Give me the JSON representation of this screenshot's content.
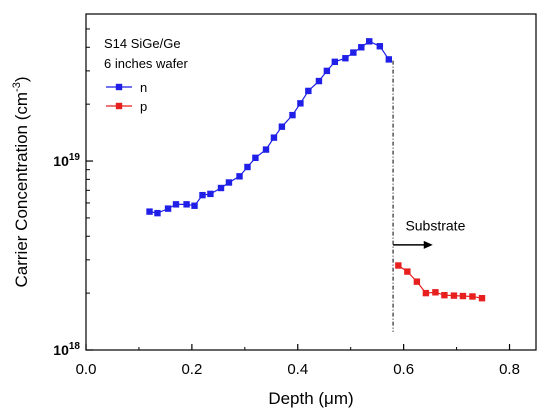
{
  "chart_data": {
    "type": "line",
    "title": "",
    "xlabel": "Depth  (μm)",
    "ylabel": "Carrier Concentration  (cm",
    "ylabel_exp": "-3",
    "ylabel_close": ")",
    "xlim": [
      0.0,
      0.85
    ],
    "ylim": [
      1e+18,
      6e+19
    ],
    "yscale": "log",
    "grid": false,
    "xticks": [
      0.0,
      0.2,
      0.4,
      0.6,
      0.8
    ],
    "xtick_labels": [
      "0.0",
      "0.2",
      "0.4",
      "0.6",
      "0.8"
    ],
    "yticks": [
      {
        "value": 1e+19,
        "base": "10",
        "exp": "19"
      },
      {
        "value": 1e+18,
        "base": "10",
        "exp": "18"
      }
    ],
    "legend": {
      "placement": "top-left",
      "lines": [
        "S14 SiGe/Ge",
        "6 inches wafer"
      ]
    },
    "series": [
      {
        "name": "n",
        "color": "#1f1fe8",
        "marker": "square",
        "x": [
          0.12,
          0.135,
          0.155,
          0.17,
          0.19,
          0.205,
          0.22,
          0.235,
          0.255,
          0.27,
          0.29,
          0.305,
          0.32,
          0.34,
          0.355,
          0.37,
          0.39,
          0.405,
          0.42,
          0.44,
          0.455,
          0.47,
          0.49,
          0.505,
          0.52,
          0.535,
          0.555,
          0.572
        ],
        "y": [
          5.4e+18,
          5.3e+18,
          5.6e+18,
          5.9e+18,
          5.9e+18,
          5.8e+18,
          6.6e+18,
          6.7e+18,
          7.2e+18,
          7.7e+18,
          8.3e+18,
          9.3e+18,
          1.04e+19,
          1.15e+19,
          1.33e+19,
          1.52e+19,
          1.75e+19,
          2.02e+19,
          2.35e+19,
          2.65e+19,
          3e+19,
          3.35e+19,
          3.5e+19,
          3.75e+19,
          4e+19,
          4.3e+19,
          4.05e+19,
          3.45e+19
        ]
      },
      {
        "name": "p",
        "color": "#e81f1f",
        "marker": "square",
        "x": [
          0.59,
          0.607,
          0.625,
          0.642,
          0.66,
          0.677,
          0.695,
          0.712,
          0.73,
          0.748
        ],
        "y": [
          2.8e+18,
          2.6e+18,
          2.3e+18,
          2e+18,
          2.02e+18,
          1.95e+18,
          1.94e+18,
          1.93e+18,
          1.92e+18,
          1.88e+18
        ]
      }
    ],
    "annotations": [
      {
        "text": "Substrate",
        "x": 0.66,
        "y": 4.3e+18
      }
    ],
    "divider_x": 0.58,
    "arrow": {
      "from_x": 0.58,
      "to_x": 0.655,
      "y": 3.6e+18
    }
  }
}
